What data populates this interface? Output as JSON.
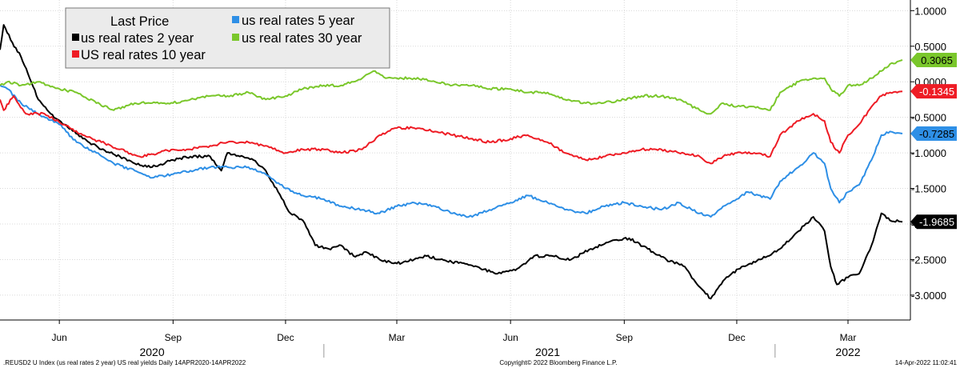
{
  "chart_data": {
    "type": "line",
    "legend_title": "Last Price",
    "legend_placement": "top-left",
    "grid": true,
    "y_axis_side": "right",
    "ylim": [
      -3.35,
      1.15
    ],
    "yticks": [
      "1.0000",
      "0.5000",
      "0.0000",
      "-0.5000",
      "-1.0000",
      "-1.5000",
      "-2.0000",
      "-2.5000",
      "-3.0000"
    ],
    "ytick_values": [
      1.0,
      0.5,
      0.0,
      -0.5,
      -1.0,
      -1.5,
      -2.0,
      -2.5,
      -3.0
    ],
    "x_range": [
      "2020-04-14",
      "2022-04-14"
    ],
    "month_ticks": [
      {
        "label": "Jun",
        "date": "2020-06-01"
      },
      {
        "label": "Sep",
        "date": "2020-09-01"
      },
      {
        "label": "Dec",
        "date": "2020-12-01"
      },
      {
        "label": "Mar",
        "date": "2021-03-01"
      },
      {
        "label": "Jun",
        "date": "2021-06-01"
      },
      {
        "label": "Sep",
        "date": "2021-09-01"
      },
      {
        "label": "Dec",
        "date": "2021-12-01"
      },
      {
        "label": "Mar",
        "date": "2022-03-01"
      }
    ],
    "year_labels": [
      {
        "label": "2020",
        "date": "2020-08-15"
      },
      {
        "label": "2021",
        "date": "2021-07-01"
      },
      {
        "label": "2022",
        "date": "2022-03-01"
      }
    ],
    "year_dividers": [
      "2021-01-01",
      "2022-01-01"
    ],
    "series": [
      {
        "name": "us real rates 2 year",
        "color": "#000000",
        "last_value": "-1.9685",
        "points": [
          [
            "2020-04-14",
            0.45
          ],
          [
            "2020-04-17",
            0.8
          ],
          [
            "2020-04-24",
            0.55
          ],
          [
            "2020-05-01",
            0.35
          ],
          [
            "2020-05-08",
            0.05
          ],
          [
            "2020-05-15",
            -0.25
          ],
          [
            "2020-05-25",
            -0.45
          ],
          [
            "2020-06-05",
            -0.6
          ],
          [
            "2020-06-20",
            -0.8
          ],
          [
            "2020-07-05",
            -0.95
          ],
          [
            "2020-07-20",
            -1.05
          ],
          [
            "2020-08-01",
            -1.15
          ],
          [
            "2020-08-15",
            -1.2
          ],
          [
            "2020-09-01",
            -1.1
          ],
          [
            "2020-09-15",
            -1.05
          ],
          [
            "2020-10-01",
            -1.05
          ],
          [
            "2020-10-10",
            -1.25
          ],
          [
            "2020-10-15",
            -1.0
          ],
          [
            "2020-10-25",
            -1.05
          ],
          [
            "2020-11-05",
            -1.1
          ],
          [
            "2020-11-15",
            -1.25
          ],
          [
            "2020-11-25",
            -1.55
          ],
          [
            "2020-12-05",
            -1.85
          ],
          [
            "2020-12-15",
            -1.95
          ],
          [
            "2020-12-25",
            -2.3
          ],
          [
            "2021-01-05",
            -2.35
          ],
          [
            "2021-01-15",
            -2.3
          ],
          [
            "2021-01-25",
            -2.45
          ],
          [
            "2021-02-05",
            -2.4
          ],
          [
            "2021-02-15",
            -2.5
          ],
          [
            "2021-02-25",
            -2.55
          ],
          [
            "2021-03-05",
            -2.55
          ],
          [
            "2021-03-15",
            -2.5
          ],
          [
            "2021-03-25",
            -2.45
          ],
          [
            "2021-04-05",
            -2.5
          ],
          [
            "2021-04-20",
            -2.55
          ],
          [
            "2021-05-05",
            -2.6
          ],
          [
            "2021-05-20",
            -2.7
          ],
          [
            "2021-06-05",
            -2.65
          ],
          [
            "2021-06-20",
            -2.45
          ],
          [
            "2021-07-05",
            -2.45
          ],
          [
            "2021-07-20",
            -2.5
          ],
          [
            "2021-08-05",
            -2.35
          ],
          [
            "2021-08-20",
            -2.25
          ],
          [
            "2021-09-05",
            -2.2
          ],
          [
            "2021-09-20",
            -2.35
          ],
          [
            "2021-10-05",
            -2.5
          ],
          [
            "2021-10-20",
            -2.6
          ],
          [
            "2021-10-30",
            -2.85
          ],
          [
            "2021-11-10",
            -3.05
          ],
          [
            "2021-11-20",
            -2.8
          ],
          [
            "2021-12-05",
            -2.6
          ],
          [
            "2021-12-20",
            -2.5
          ],
          [
            "2022-01-05",
            -2.35
          ],
          [
            "2022-01-20",
            -2.1
          ],
          [
            "2022-02-01",
            -1.9
          ],
          [
            "2022-02-10",
            -2.1
          ],
          [
            "2022-02-15",
            -2.6
          ],
          [
            "2022-02-20",
            -2.85
          ],
          [
            "2022-03-01",
            -2.75
          ],
          [
            "2022-03-10",
            -2.7
          ],
          [
            "2022-03-20",
            -2.3
          ],
          [
            "2022-03-28",
            -1.85
          ],
          [
            "2022-04-04",
            -1.95
          ],
          [
            "2022-04-14",
            -1.9685
          ]
        ]
      },
      {
        "name": "us real rates 5 year",
        "color": "#2e8fe6",
        "last_value": "-0.7285",
        "points": [
          [
            "2020-04-14",
            -0.05
          ],
          [
            "2020-04-20",
            -0.1
          ],
          [
            "2020-05-01",
            -0.3
          ],
          [
            "2020-05-15",
            -0.45
          ],
          [
            "2020-06-01",
            -0.6
          ],
          [
            "2020-06-15",
            -0.85
          ],
          [
            "2020-07-01",
            -1.0
          ],
          [
            "2020-07-15",
            -1.15
          ],
          [
            "2020-08-01",
            -1.25
          ],
          [
            "2020-08-15",
            -1.35
          ],
          [
            "2020-09-01",
            -1.3
          ],
          [
            "2020-09-15",
            -1.25
          ],
          [
            "2020-10-01",
            -1.2
          ],
          [
            "2020-10-15",
            -1.2
          ],
          [
            "2020-11-01",
            -1.2
          ],
          [
            "2020-11-15",
            -1.3
          ],
          [
            "2020-12-01",
            -1.5
          ],
          [
            "2020-12-15",
            -1.6
          ],
          [
            "2021-01-01",
            -1.65
          ],
          [
            "2021-01-15",
            -1.75
          ],
          [
            "2021-02-01",
            -1.8
          ],
          [
            "2021-02-15",
            -1.85
          ],
          [
            "2021-03-01",
            -1.75
          ],
          [
            "2021-03-15",
            -1.7
          ],
          [
            "2021-04-01",
            -1.75
          ],
          [
            "2021-04-15",
            -1.85
          ],
          [
            "2021-05-01",
            -1.9
          ],
          [
            "2021-05-15",
            -1.8
          ],
          [
            "2021-06-01",
            -1.7
          ],
          [
            "2021-06-15",
            -1.6
          ],
          [
            "2021-07-01",
            -1.7
          ],
          [
            "2021-07-15",
            -1.8
          ],
          [
            "2021-08-01",
            -1.85
          ],
          [
            "2021-08-15",
            -1.75
          ],
          [
            "2021-09-01",
            -1.7
          ],
          [
            "2021-09-15",
            -1.75
          ],
          [
            "2021-10-01",
            -1.8
          ],
          [
            "2021-10-15",
            -1.7
          ],
          [
            "2021-11-01",
            -1.85
          ],
          [
            "2021-11-10",
            -1.9
          ],
          [
            "2021-11-20",
            -1.75
          ],
          [
            "2021-12-01",
            -1.65
          ],
          [
            "2021-12-10",
            -1.55
          ],
          [
            "2021-12-20",
            -1.6
          ],
          [
            "2021-12-28",
            -1.65
          ],
          [
            "2022-01-05",
            -1.4
          ],
          [
            "2022-01-20",
            -1.2
          ],
          [
            "2022-02-01",
            -1.0
          ],
          [
            "2022-02-10",
            -1.15
          ],
          [
            "2022-02-15",
            -1.5
          ],
          [
            "2022-02-22",
            -1.7
          ],
          [
            "2022-03-01",
            -1.55
          ],
          [
            "2022-03-10",
            -1.45
          ],
          [
            "2022-03-20",
            -1.1
          ],
          [
            "2022-03-28",
            -0.75
          ],
          [
            "2022-04-04",
            -0.7
          ],
          [
            "2022-04-14",
            -0.7285
          ]
        ]
      },
      {
        "name": "US real rates 10 year",
        "color": "#ee1c25",
        "last_value": "-0.1345",
        "points": [
          [
            "2020-04-14",
            -0.25
          ],
          [
            "2020-04-17",
            -0.4
          ],
          [
            "2020-04-25",
            -0.2
          ],
          [
            "2020-05-05",
            -0.45
          ],
          [
            "2020-05-20",
            -0.45
          ],
          [
            "2020-06-05",
            -0.6
          ],
          [
            "2020-06-20",
            -0.75
          ],
          [
            "2020-07-05",
            -0.85
          ],
          [
            "2020-07-20",
            -0.95
          ],
          [
            "2020-08-05",
            -1.05
          ],
          [
            "2020-08-20",
            -1.0
          ],
          [
            "2020-09-01",
            -0.95
          ],
          [
            "2020-09-15",
            -0.95
          ],
          [
            "2020-10-01",
            -0.9
          ],
          [
            "2020-10-15",
            -0.85
          ],
          [
            "2020-11-01",
            -0.85
          ],
          [
            "2020-11-15",
            -0.9
          ],
          [
            "2020-12-01",
            -1.0
          ],
          [
            "2020-12-15",
            -0.95
          ],
          [
            "2021-01-01",
            -0.95
          ],
          [
            "2021-01-15",
            -1.0
          ],
          [
            "2021-02-01",
            -0.95
          ],
          [
            "2021-02-15",
            -0.75
          ],
          [
            "2021-03-01",
            -0.65
          ],
          [
            "2021-03-15",
            -0.65
          ],
          [
            "2021-04-01",
            -0.7
          ],
          [
            "2021-04-15",
            -0.75
          ],
          [
            "2021-05-01",
            -0.8
          ],
          [
            "2021-05-15",
            -0.85
          ],
          [
            "2021-06-01",
            -0.8
          ],
          [
            "2021-06-15",
            -0.75
          ],
          [
            "2021-07-01",
            -0.85
          ],
          [
            "2021-07-15",
            -1.0
          ],
          [
            "2021-08-01",
            -1.1
          ],
          [
            "2021-08-15",
            -1.05
          ],
          [
            "2021-09-01",
            -1.0
          ],
          [
            "2021-09-15",
            -0.95
          ],
          [
            "2021-10-01",
            -0.95
          ],
          [
            "2021-10-15",
            -1.0
          ],
          [
            "2021-11-01",
            -1.05
          ],
          [
            "2021-11-10",
            -1.15
          ],
          [
            "2021-11-20",
            -1.05
          ],
          [
            "2021-12-01",
            -1.0
          ],
          [
            "2021-12-15",
            -1.0
          ],
          [
            "2021-12-28",
            -1.05
          ],
          [
            "2022-01-05",
            -0.75
          ],
          [
            "2022-01-20",
            -0.55
          ],
          [
            "2022-02-01",
            -0.45
          ],
          [
            "2022-02-10",
            -0.55
          ],
          [
            "2022-02-15",
            -0.85
          ],
          [
            "2022-02-22",
            -1.0
          ],
          [
            "2022-03-01",
            -0.75
          ],
          [
            "2022-03-10",
            -0.6
          ],
          [
            "2022-03-20",
            -0.35
          ],
          [
            "2022-03-28",
            -0.2
          ],
          [
            "2022-04-04",
            -0.15
          ],
          [
            "2022-04-14",
            -0.1345
          ]
        ]
      },
      {
        "name": "us real rates 30 year",
        "color": "#7ac72b",
        "last_value": "0.3065",
        "points": [
          [
            "2020-04-14",
            -0.05
          ],
          [
            "2020-04-20",
            0.0
          ],
          [
            "2020-05-01",
            -0.05
          ],
          [
            "2020-05-15",
            0.0
          ],
          [
            "2020-06-01",
            -0.1
          ],
          [
            "2020-06-15",
            -0.15
          ],
          [
            "2020-07-01",
            -0.3
          ],
          [
            "2020-07-15",
            -0.4
          ],
          [
            "2020-08-01",
            -0.3
          ],
          [
            "2020-08-15",
            -0.3
          ],
          [
            "2020-09-01",
            -0.3
          ],
          [
            "2020-09-15",
            -0.25
          ],
          [
            "2020-10-01",
            -0.2
          ],
          [
            "2020-10-15",
            -0.2
          ],
          [
            "2020-11-01",
            -0.15
          ],
          [
            "2020-11-15",
            -0.25
          ],
          [
            "2020-12-01",
            -0.2
          ],
          [
            "2020-12-15",
            -0.1
          ],
          [
            "2021-01-01",
            -0.05
          ],
          [
            "2021-01-15",
            -0.05
          ],
          [
            "2021-02-01",
            0.05
          ],
          [
            "2021-02-10",
            0.15
          ],
          [
            "2021-02-20",
            0.05
          ],
          [
            "2021-03-01",
            0.05
          ],
          [
            "2021-03-15",
            0.05
          ],
          [
            "2021-04-01",
            0.0
          ],
          [
            "2021-04-15",
            -0.05
          ],
          [
            "2021-05-01",
            -0.05
          ],
          [
            "2021-05-15",
            -0.1
          ],
          [
            "2021-06-01",
            -0.1
          ],
          [
            "2021-06-15",
            -0.15
          ],
          [
            "2021-07-01",
            -0.15
          ],
          [
            "2021-07-15",
            -0.25
          ],
          [
            "2021-08-01",
            -0.3
          ],
          [
            "2021-08-15",
            -0.3
          ],
          [
            "2021-09-01",
            -0.25
          ],
          [
            "2021-09-15",
            -0.2
          ],
          [
            "2021-10-01",
            -0.2
          ],
          [
            "2021-10-15",
            -0.25
          ],
          [
            "2021-11-01",
            -0.4
          ],
          [
            "2021-11-10",
            -0.45
          ],
          [
            "2021-11-20",
            -0.3
          ],
          [
            "2021-12-01",
            -0.35
          ],
          [
            "2021-12-15",
            -0.35
          ],
          [
            "2021-12-28",
            -0.4
          ],
          [
            "2022-01-05",
            -0.15
          ],
          [
            "2022-01-20",
            0.0
          ],
          [
            "2022-02-01",
            0.05
          ],
          [
            "2022-02-10",
            0.05
          ],
          [
            "2022-02-15",
            -0.1
          ],
          [
            "2022-02-22",
            -0.2
          ],
          [
            "2022-03-01",
            -0.05
          ],
          [
            "2022-03-10",
            -0.05
          ],
          [
            "2022-03-20",
            0.05
          ],
          [
            "2022-03-28",
            0.15
          ],
          [
            "2022-04-04",
            0.25
          ],
          [
            "2022-04-14",
            0.3065
          ]
        ]
      }
    ],
    "footer_left": ".REUSD2 U Index (us real rates 2 year) US real yields  Daily 14APR2020-14APR2022",
    "footer_center": "Copyright© 2022 Bloomberg Finance L.P.",
    "footer_right": "14-Apr-2022 11:02:41"
  }
}
